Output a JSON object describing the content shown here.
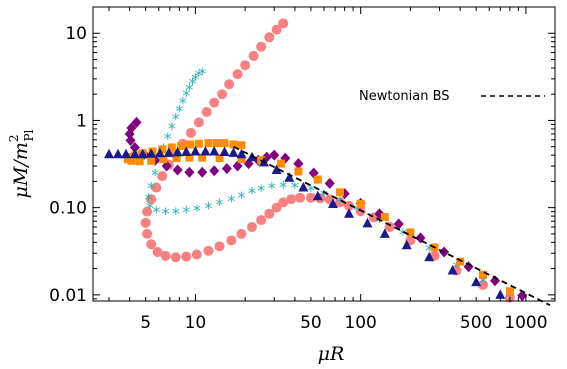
{
  "chart_data": {
    "type": "scatter",
    "xscale": "log",
    "yscale": "log",
    "xlim": [
      2.4,
      1500
    ],
    "ylim": [
      0.0085,
      20
    ],
    "xticks": [
      {
        "value": 5,
        "label": "5"
      },
      {
        "value": 10,
        "label": "10"
      },
      {
        "value": 50,
        "label": "50"
      },
      {
        "value": 100,
        "label": "100"
      },
      {
        "value": 500,
        "label": "500"
      },
      {
        "value": 1000,
        "label": "1000"
      }
    ],
    "yticks": [
      {
        "value": 0.01,
        "label": "0.01"
      },
      {
        "value": 0.1,
        "label": "0.10"
      },
      {
        "value": 1,
        "label": "1"
      },
      {
        "value": 10,
        "label": "10"
      }
    ],
    "xlabel": "μR",
    "ylabel_main": "μM/m",
    "ylabel_sup": "2",
    "ylabel_sub": "Pl",
    "legend": {
      "entry": "Newtonian BS",
      "placement": "upper-right",
      "line_color": "#000000",
      "line_style": "dashed"
    },
    "series": [
      {
        "marker": "circle",
        "color": "#f98080",
        "points": [
          [
            34,
            13
          ],
          [
            31,
            11
          ],
          [
            28,
            9
          ],
          [
            25,
            7
          ],
          [
            22.5,
            5.5
          ],
          [
            20,
            4.3
          ],
          [
            18,
            3.4
          ],
          [
            16,
            2.6
          ],
          [
            14.5,
            2.0
          ],
          [
            13,
            1.6
          ],
          [
            11.7,
            1.25
          ],
          [
            10.5,
            0.95
          ],
          [
            9.4,
            0.72
          ],
          [
            8.4,
            0.54
          ],
          [
            7.6,
            0.41
          ],
          [
            6.9,
            0.31
          ],
          [
            6.3,
            0.23
          ],
          [
            5.8,
            0.17
          ],
          [
            5.4,
            0.125
          ],
          [
            5.1,
            0.09
          ],
          [
            5.0,
            0.067
          ],
          [
            5.1,
            0.05
          ],
          [
            5.4,
            0.038
          ],
          [
            5.9,
            0.031
          ],
          [
            6.6,
            0.028
          ],
          [
            7.6,
            0.027
          ],
          [
            8.8,
            0.0275
          ],
          [
            10.2,
            0.029
          ],
          [
            12,
            0.032
          ],
          [
            14,
            0.036
          ],
          [
            16.5,
            0.042
          ],
          [
            19,
            0.05
          ],
          [
            22,
            0.06
          ],
          [
            25,
            0.072
          ],
          [
            28,
            0.085
          ],
          [
            31,
            0.1
          ],
          [
            34,
            0.115
          ],
          [
            38,
            0.125
          ],
          [
            43,
            0.13
          ],
          [
            50,
            0.13
          ],
          [
            57,
            0.128
          ],
          [
            65,
            0.124
          ],
          [
            75,
            0.115
          ],
          [
            85,
            0.105
          ],
          [
            100,
            0.091
          ],
          [
            120,
            0.077
          ],
          [
            150,
            0.06
          ],
          [
            200,
            0.042
          ],
          [
            280,
            0.028
          ],
          [
            380,
            0.019
          ],
          [
            550,
            0.013
          ],
          [
            800,
            0.0093
          ]
        ]
      },
      {
        "marker": "star",
        "color": "#2ab0b0",
        "points": [
          [
            11,
            3.5
          ],
          [
            10.5,
            3.3
          ],
          [
            10,
            3.0
          ],
          [
            9.6,
            2.7
          ],
          [
            9.2,
            2.3
          ],
          [
            8.8,
            1.95
          ],
          [
            8.4,
            1.6
          ],
          [
            8.0,
            1.3
          ],
          [
            7.6,
            1.05
          ],
          [
            7.2,
            0.82
          ],
          [
            6.8,
            0.63
          ],
          [
            6.4,
            0.47
          ],
          [
            6.0,
            0.34
          ],
          [
            5.7,
            0.24
          ],
          [
            5.4,
            0.17
          ],
          [
            5.2,
            0.125
          ],
          [
            5.3,
            0.1
          ],
          [
            5.8,
            0.09
          ],
          [
            6.6,
            0.087
          ],
          [
            7.6,
            0.087
          ],
          [
            8.8,
            0.09
          ],
          [
            10.2,
            0.094
          ],
          [
            12,
            0.1
          ],
          [
            14,
            0.11
          ],
          [
            16.5,
            0.12
          ],
          [
            19,
            0.133
          ],
          [
            22,
            0.15
          ],
          [
            25,
            0.16
          ],
          [
            29,
            0.17
          ],
          [
            34,
            0.175
          ],
          [
            40,
            0.172
          ],
          [
            50,
            0.16
          ],
          [
            60,
            0.14
          ],
          [
            75,
            0.118
          ],
          [
            95,
            0.095
          ],
          [
            130,
            0.07
          ],
          [
            180,
            0.05
          ],
          [
            260,
            0.033
          ],
          [
            380,
            0.021
          ],
          [
            550,
            0.014
          ],
          [
            800,
            0.0097
          ]
        ]
      },
      {
        "marker": "diamond",
        "color": "#800080",
        "points": [
          [
            4.4,
            0.95
          ],
          [
            4.1,
            0.82
          ],
          [
            4.0,
            0.7
          ],
          [
            4.05,
            0.59
          ],
          [
            4.3,
            0.49
          ],
          [
            4.9,
            0.41
          ],
          [
            5.7,
            0.35
          ],
          [
            6.7,
            0.3
          ],
          [
            7.8,
            0.27
          ],
          [
            9.2,
            0.255
          ],
          [
            11,
            0.255
          ],
          [
            13,
            0.265
          ],
          [
            15.5,
            0.28
          ],
          [
            18,
            0.3
          ],
          [
            21,
            0.32
          ],
          [
            24,
            0.35
          ],
          [
            27,
            0.38
          ],
          [
            30,
            0.4
          ],
          [
            35,
            0.37
          ],
          [
            42,
            0.32
          ],
          [
            52,
            0.25
          ],
          [
            65,
            0.19
          ],
          [
            80,
            0.145
          ],
          [
            100,
            0.112
          ],
          [
            130,
            0.085
          ],
          [
            170,
            0.065
          ],
          [
            230,
            0.045
          ],
          [
            320,
            0.031
          ],
          [
            450,
            0.021
          ],
          [
            650,
            0.0145
          ],
          [
            950,
            0.0098
          ]
        ]
      },
      {
        "marker": "square",
        "color": "#ff8c00",
        "points": [
          [
            19,
            0.52
          ],
          [
            17,
            0.53
          ],
          [
            15,
            0.55
          ],
          [
            13.5,
            0.55
          ],
          [
            12,
            0.55
          ],
          [
            10.5,
            0.54
          ],
          [
            9.3,
            0.53
          ],
          [
            8.2,
            0.51
          ],
          [
            7.2,
            0.49
          ],
          [
            6.3,
            0.465
          ],
          [
            5.5,
            0.44
          ],
          [
            4.8,
            0.42
          ],
          [
            4.3,
            0.4
          ],
          [
            4.0,
            0.38
          ],
          [
            3.9,
            0.36
          ],
          [
            4.1,
            0.345
          ],
          [
            4.6,
            0.34
          ],
          [
            5.4,
            0.345
          ],
          [
            6.4,
            0.36
          ],
          [
            7.7,
            0.37
          ],
          [
            9.2,
            0.375
          ],
          [
            11,
            0.375
          ],
          [
            14,
            0.37
          ],
          [
            19,
            0.36
          ],
          [
            25,
            0.35
          ],
          [
            33,
            0.32
          ],
          [
            42,
            0.26
          ],
          [
            55,
            0.21
          ],
          [
            75,
            0.15
          ],
          [
            100,
            0.11
          ],
          [
            140,
            0.078
          ],
          [
            200,
            0.052
          ],
          [
            280,
            0.035
          ],
          [
            400,
            0.024
          ],
          [
            550,
            0.017
          ],
          [
            800,
            0.011
          ]
        ]
      },
      {
        "marker": "triangle",
        "color": "#1a1a8c",
        "points": [
          [
            3.0,
            0.41
          ],
          [
            3.4,
            0.41
          ],
          [
            3.8,
            0.41
          ],
          [
            4.3,
            0.41
          ],
          [
            4.8,
            0.41
          ],
          [
            5.4,
            0.415
          ],
          [
            6.1,
            0.42
          ],
          [
            6.9,
            0.425
          ],
          [
            7.8,
            0.43
          ],
          [
            8.8,
            0.435
          ],
          [
            10,
            0.44
          ],
          [
            11.5,
            0.44
          ],
          [
            13,
            0.44
          ],
          [
            15,
            0.435
          ],
          [
            17,
            0.425
          ],
          [
            19,
            0.41
          ],
          [
            22,
            0.38
          ],
          [
            26,
            0.33
          ],
          [
            31,
            0.27
          ],
          [
            37,
            0.22
          ],
          [
            45,
            0.17
          ],
          [
            55,
            0.135
          ],
          [
            68,
            0.11
          ],
          [
            85,
            0.085
          ],
          [
            110,
            0.066
          ],
          [
            140,
            0.05
          ],
          [
            190,
            0.037
          ],
          [
            260,
            0.027
          ],
          [
            360,
            0.019
          ],
          [
            500,
            0.014
          ],
          [
            700,
            0.01
          ]
        ]
      }
    ],
    "reference_line": {
      "name": "Newtonian BS",
      "color": "#000000",
      "style": "dashed",
      "points": [
        [
          17,
          0.5
        ],
        [
          1400,
          0.0076
        ]
      ]
    }
  }
}
